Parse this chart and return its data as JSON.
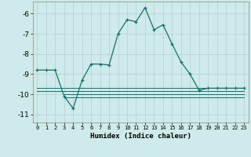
{
  "xlabel": "Humidex (Indice chaleur)",
  "ylabel": "",
  "bg_color": "#ceeaea",
  "grid_color": "#b8d4d4",
  "line_color": "#1a6e6a",
  "xlim": [
    -0.5,
    23.5
  ],
  "ylim": [
    -11.4,
    -5.4
  ],
  "yticks": [
    -11,
    -10,
    -9,
    -8,
    -7,
    -6
  ],
  "xticks": [
    0,
    1,
    2,
    3,
    4,
    5,
    6,
    7,
    8,
    9,
    10,
    11,
    12,
    13,
    14,
    15,
    16,
    17,
    18,
    19,
    20,
    21,
    22,
    23
  ],
  "xtick_labels": [
    "0",
    "1",
    "2",
    "3",
    "4",
    "5",
    "6",
    "7",
    "8",
    "9",
    "10",
    "11",
    "12",
    "13",
    "14",
    "15",
    "16",
    "17",
    "18",
    "19",
    "20",
    "21",
    "22",
    "23"
  ],
  "series_main": {
    "x": [
      0,
      1,
      2,
      3,
      4,
      5,
      6,
      7,
      8,
      9,
      10,
      11,
      12,
      13,
      14,
      15,
      16,
      17,
      18,
      19,
      20,
      21,
      22,
      23
    ],
    "y": [
      -8.8,
      -8.8,
      -8.8,
      -10.1,
      -10.7,
      -9.3,
      -8.5,
      -8.5,
      -8.55,
      -7.0,
      -6.3,
      -6.4,
      -5.7,
      -6.8,
      -6.55,
      -7.5,
      -8.4,
      -9.0,
      -9.8,
      -9.7,
      -9.7,
      -9.7,
      -9.7,
      -9.7
    ]
  },
  "series_flat1": {
    "x": [
      0,
      23
    ],
    "y": [
      -9.7,
      -9.7
    ]
  },
  "series_flat2": {
    "x": [
      0,
      23
    ],
    "y": [
      -9.85,
      -9.85
    ]
  },
  "series_flat3": {
    "x": [
      3,
      23
    ],
    "y": [
      -10.0,
      -10.0
    ]
  },
  "series_flat4": {
    "x": [
      3,
      23
    ],
    "y": [
      -10.15,
      -10.15
    ]
  }
}
